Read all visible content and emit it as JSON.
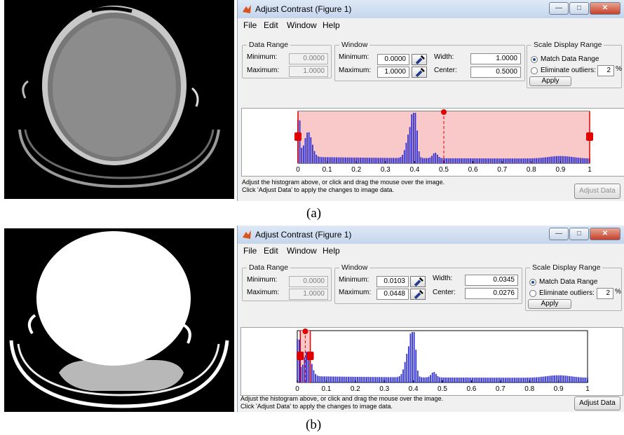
{
  "captions": {
    "a": "(a)",
    "b": "(b)"
  },
  "figures": [
    {
      "title": "Adjust Contrast (Figure 1)",
      "menu": [
        "File",
        "Edit",
        "Window",
        "Help"
      ],
      "window_controls": [
        "minimize",
        "maximize",
        "close"
      ],
      "data_range": {
        "legend": "Data Range",
        "min_label": "Minimum:",
        "max_label": "Maximum:",
        "min": "0.0000",
        "max": "1.0000"
      },
      "window": {
        "legend": "Window",
        "min_label": "Minimum:",
        "max_label": "Maximum:",
        "min": "0.0000",
        "max": "1.0000",
        "width_label": "Width:",
        "center_label": "Center:",
        "width": "1.0000",
        "center": "0.5000"
      },
      "scale": {
        "legend": "Scale Display Range",
        "match": "Match Data Range",
        "eliminate": "Eliminate outliers:",
        "outliers": "2",
        "pct": "%",
        "apply": "Apply",
        "selected": "match"
      },
      "histogram": {
        "ticks": [
          "0",
          "0.1",
          "0.2",
          "0.3",
          "0.4",
          "0.5",
          "0.6",
          "0.7",
          "0.8",
          "0.9",
          "1"
        ],
        "window_min": 0.0,
        "window_max": 1.0,
        "center": 0.5
      },
      "help": [
        "Adjust the histogram above, or click and drag the mouse over the image.",
        "Click 'Adjust Data' to apply the changes to image data."
      ],
      "adjust_button": "Adjust Data",
      "adjust_enabled": false,
      "image": "ct-head-window-full"
    },
    {
      "title": "Adjust Contrast (Figure 1)",
      "menu": [
        "File",
        "Edit",
        "Window",
        "Help"
      ],
      "window_controls": [
        "minimize",
        "maximize",
        "close"
      ],
      "data_range": {
        "legend": "Data Range",
        "min_label": "Minimum:",
        "max_label": "Maximum:",
        "min": "0.0000",
        "max": "1.0000"
      },
      "window": {
        "legend": "Window",
        "min_label": "Minimum:",
        "max_label": "Maximum:",
        "min": "0.0103",
        "max": "0.0448",
        "width_label": "Width:",
        "center_label": "Center:",
        "width": "0.0345",
        "center": "0.0276"
      },
      "scale": {
        "legend": "Scale Display Range",
        "match": "Match Data Range",
        "eliminate": "Eliminate outliers:",
        "outliers": "2",
        "pct": "%",
        "apply": "Apply",
        "selected": "match"
      },
      "histogram": {
        "ticks": [
          "0",
          "0.1",
          "0.2",
          "0.3",
          "0.4",
          "0.5",
          "0.6",
          "0.7",
          "0.8",
          "0.9",
          "1"
        ],
        "window_min": 0.0103,
        "window_max": 0.0448,
        "center": 0.0276
      },
      "help": [
        "Adjust the histogram above, or click and drag the mouse over the image.",
        "Click 'Adjust Data' to apply the changes to image data."
      ],
      "adjust_button": "Adjust Data",
      "adjust_enabled": true,
      "image": "ct-head-window-narrow"
    }
  ]
}
